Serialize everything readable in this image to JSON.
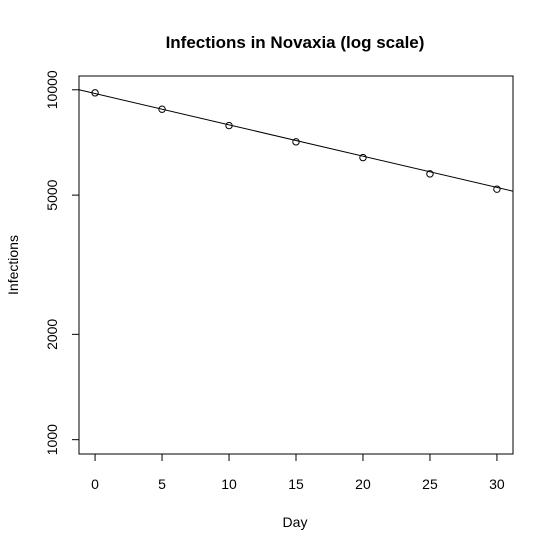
{
  "chart_data": {
    "type": "scatter",
    "title": "Infections in Novaxia (log scale)",
    "xlabel": "Day",
    "ylabel": "Infections",
    "y_scale": "log",
    "xlim": [
      -1.2,
      31.2
    ],
    "ylim": [
      910,
      10950
    ],
    "x_ticks": [
      0,
      5,
      10,
      15,
      20,
      25,
      30
    ],
    "y_ticks": [
      1000,
      2000,
      5000,
      10000
    ],
    "grid": false,
    "legend": "none",
    "series": [
      {
        "x": [
          0,
          5,
          10,
          15,
          20,
          25,
          30
        ],
        "y": [
          9800,
          8800,
          7900,
          7100,
          6400,
          5750,
          5200
        ],
        "marker": "open-circle"
      }
    ],
    "fit_line": {
      "x": [
        -1.2,
        31.2
      ],
      "y": [
        10000,
        5130
      ]
    }
  }
}
